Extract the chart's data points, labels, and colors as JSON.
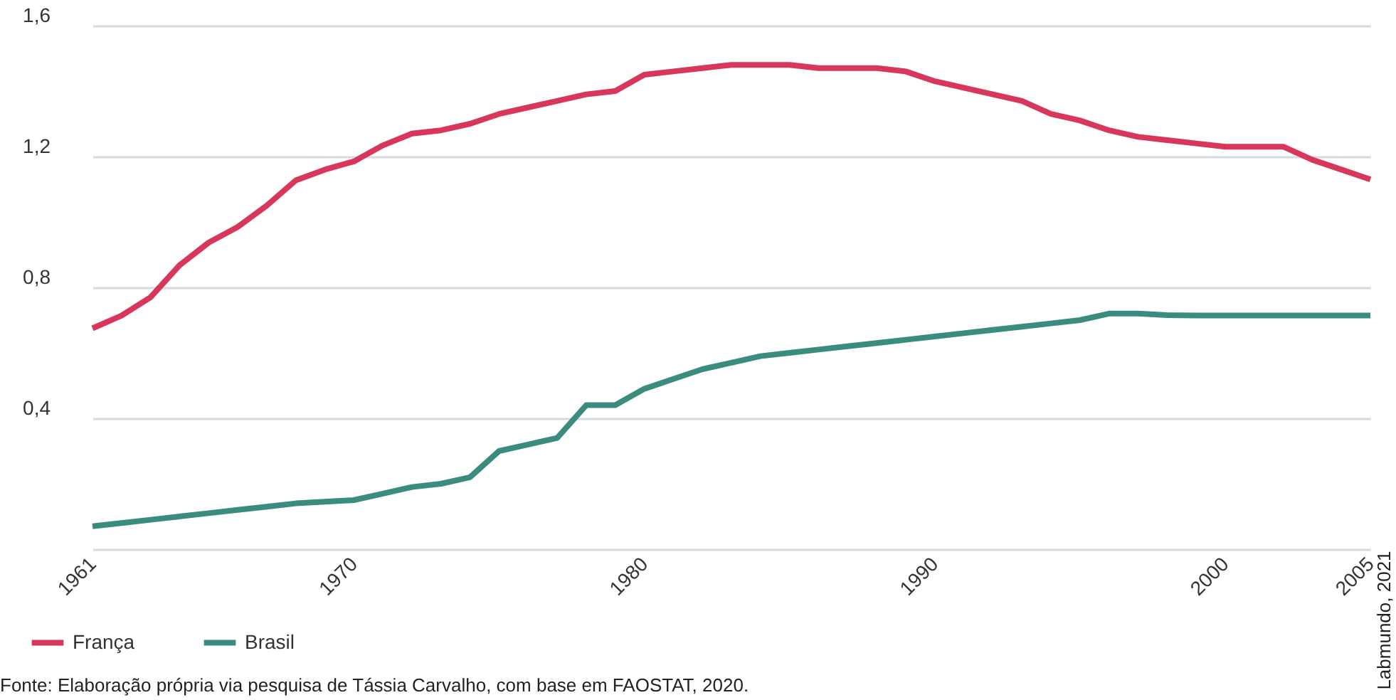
{
  "chart_data": {
    "type": "line",
    "x": [
      1961,
      1962,
      1963,
      1964,
      1965,
      1966,
      1967,
      1968,
      1969,
      1970,
      1971,
      1972,
      1973,
      1974,
      1975,
      1976,
      1977,
      1978,
      1979,
      1980,
      1981,
      1982,
      1983,
      1984,
      1985,
      1986,
      1987,
      1988,
      1989,
      1990,
      1991,
      1992,
      1993,
      1994,
      1995,
      1996,
      1997,
      1998,
      1999,
      2000,
      2001,
      2002,
      2003,
      2004,
      2005
    ],
    "series": [
      {
        "name": "França",
        "color": "#d8365a",
        "values": [
          0.675,
          0.714,
          0.77,
          0.868,
          0.937,
          0.985,
          1.05,
          1.127,
          1.16,
          1.185,
          1.234,
          1.27,
          1.28,
          1.3,
          1.33,
          1.35,
          1.37,
          1.39,
          1.4,
          1.45,
          1.46,
          1.47,
          1.48,
          1.48,
          1.48,
          1.47,
          1.47,
          1.47,
          1.46,
          1.43,
          1.41,
          1.39,
          1.37,
          1.33,
          1.31,
          1.28,
          1.26,
          1.25,
          1.24,
          1.23,
          1.23,
          1.23,
          1.19,
          1.16,
          1.13
        ]
      },
      {
        "name": "Brasil",
        "color": "#3a8c7e",
        "values": [
          0.07,
          0.08,
          0.09,
          0.1,
          0.11,
          0.12,
          0.13,
          0.14,
          0.145,
          0.15,
          0.17,
          0.19,
          0.2,
          0.22,
          0.3,
          0.32,
          0.34,
          0.44,
          0.44,
          0.49,
          0.52,
          0.55,
          0.57,
          0.59,
          0.6,
          0.61,
          0.62,
          0.63,
          0.64,
          0.65,
          0.66,
          0.67,
          0.68,
          0.69,
          0.7,
          0.72,
          0.72,
          0.715,
          0.714,
          0.714,
          0.714,
          0.714,
          0.714,
          0.714,
          0.714
        ]
      }
    ],
    "xlim": [
      1961,
      2005
    ],
    "xticks": [
      1961,
      1970,
      1980,
      1990,
      2000,
      2005
    ],
    "ylim": [
      0,
      1.6
    ],
    "yticks": [
      {
        "value": 0,
        "label": null
      },
      {
        "value": 0.4,
        "label": "0,4"
      },
      {
        "value": 0.8,
        "label": "0,8"
      },
      {
        "value": 1.2,
        "label": "1,2"
      },
      {
        "value": 1.6,
        "label": "1,6"
      }
    ],
    "grid": "y",
    "legend": "bottom",
    "marker": "none",
    "line_style": "solid",
    "annotations": [
      "Fonte: Elaboração própria via pesquisa de Tássia Carvalho, com base em  FAOSTAT, 2020.",
      "Labmundo, 2021"
    ]
  }
}
